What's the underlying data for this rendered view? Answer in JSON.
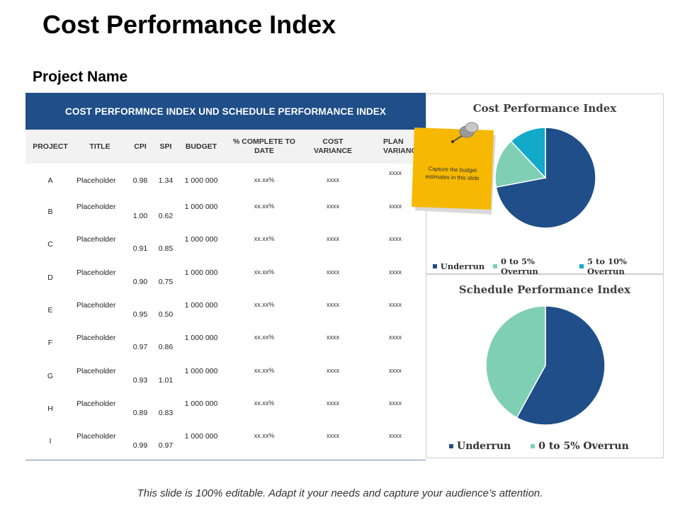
{
  "title": "Cost Performance Index",
  "subtitle": "Project Name",
  "table": {
    "banner": "COST PERFORMNCE INDEX UND SCHEDULE PERFORMANCE INDEX",
    "headers": [
      "PROJECT",
      "TITLE",
      "CPI",
      "SPI",
      "BUDGET",
      "% COMPLETE  TO DATE",
      "COST VARIANCE",
      "PLAN VARIANC"
    ],
    "rows": [
      {
        "project": "A",
        "title": "Placeholder",
        "cpi": "0.98",
        "spi": "1.34",
        "budget": "1 000 000",
        "complete": "xx.xx%",
        "cost_var": "xxxx",
        "plan_var": "xxxx"
      },
      {
        "project": "B",
        "title": "Placeholder",
        "cpi": "1.00",
        "spi": "0.62",
        "budget": "1 000 000",
        "complete": "xx.xx%",
        "cost_var": "xxxx",
        "plan_var": "xxxx"
      },
      {
        "project": "C",
        "title": "Placeholder",
        "cpi": "0.91",
        "spi": "0.85",
        "budget": "1 000 000",
        "complete": "xx.xx%",
        "cost_var": "xxxx",
        "plan_var": "xxxx"
      },
      {
        "project": "D",
        "title": "Placeholder",
        "cpi": "0.90",
        "spi": "0.75",
        "budget": "1 000 000",
        "complete": "xx.xx%",
        "cost_var": "xxxx",
        "plan_var": "xxxx"
      },
      {
        "project": "E",
        "title": "Placeholder",
        "cpi": "0.95",
        "spi": "0.50",
        "budget": "1 000 000",
        "complete": "xx.xx%",
        "cost_var": "xxxx",
        "plan_var": "xxxx"
      },
      {
        "project": "F",
        "title": "Placeholder",
        "cpi": "0.97",
        "spi": "0.86",
        "budget": "1 000 000",
        "complete": "xx.xx%",
        "cost_var": "xxxx",
        "plan_var": "xxxx"
      },
      {
        "project": "G",
        "title": "Placeholder",
        "cpi": "0.93",
        "spi": "1.01",
        "budget": "1 000 000",
        "complete": "xx.xx%",
        "cost_var": "xxxx",
        "plan_var": "xxxx"
      },
      {
        "project": "H",
        "title": "Placeholder",
        "cpi": "0.89",
        "spi": "0.83",
        "budget": "1 000 000",
        "complete": "xx.xx%",
        "cost_var": "xxxx",
        "plan_var": "xxxx"
      },
      {
        "project": "I",
        "title": "Placeholder",
        "cpi": "0.99",
        "spi": "0.97",
        "budget": "1 000 000",
        "complete": "xx.xx%",
        "cost_var": "xxxx",
        "plan_var": "xxxx"
      }
    ]
  },
  "sticky_note": {
    "text": "Capture the budget estimates in this slide",
    "icon": "pushpin-icon"
  },
  "footer": "This slide is 100% editable. Adapt it your needs and capture your audience’s attention.",
  "colors": {
    "banner": "#1f4e89",
    "underrun": "#1f4e89",
    "overrun_0_5": "#7fcfb5",
    "overrun_5_10": "#13a9c9",
    "note": "#f6b800"
  },
  "chart_data": [
    {
      "type": "pie",
      "title": "Cost Performance Index",
      "categories": [
        "Underrun",
        "0 to 5% Overrun",
        "5 to 10% Overrun"
      ],
      "values": [
        72,
        16,
        12
      ],
      "colors": [
        "#1f4e89",
        "#7fcfb5",
        "#13a9c9"
      ],
      "legend": "bottom"
    },
    {
      "type": "pie",
      "title": "Schedule Performance Index",
      "categories": [
        "Underrun",
        "0 to 5% Overrun"
      ],
      "values": [
        58,
        42
      ],
      "colors": [
        "#1f4e89",
        "#7fcfb5"
      ],
      "legend": "bottom"
    }
  ]
}
